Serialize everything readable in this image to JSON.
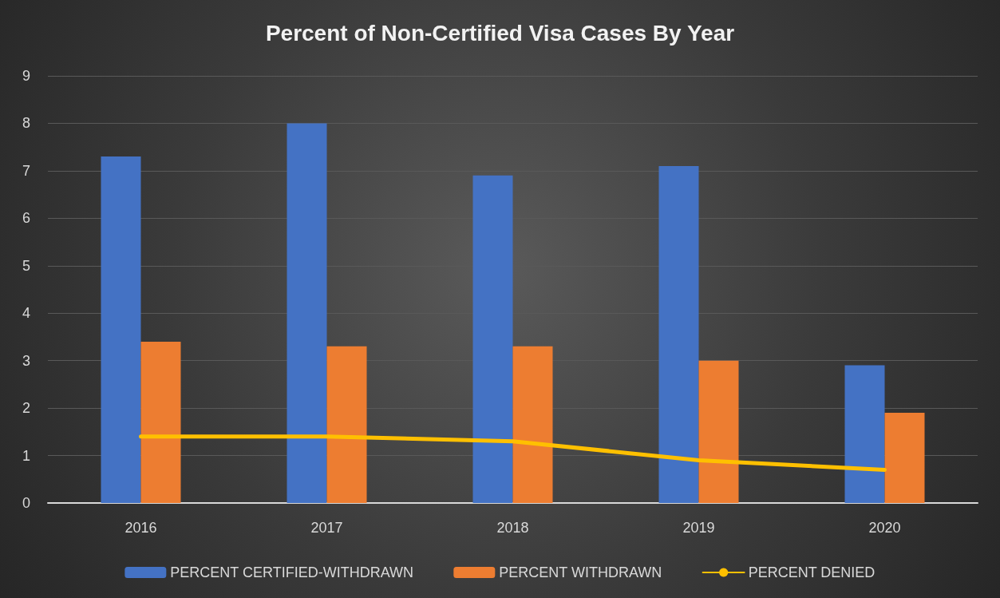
{
  "chart_data": {
    "type": "bar",
    "title": "Percent of Non-Certified Visa Cases By Year",
    "categories": [
      "2016",
      "2017",
      "2018",
      "2019",
      "2020"
    ],
    "series": [
      {
        "name": "PERCENT CERTIFIED-WITHDRAWN",
        "color": "#4472c4",
        "values": [
          7.3,
          8.0,
          6.9,
          7.1,
          2.9
        ]
      },
      {
        "name": "PERCENT WITHDRAWN",
        "color": "#ed7d31",
        "values": [
          3.4,
          3.3,
          3.3,
          3.0,
          1.9
        ]
      },
      {
        "name": "PERCENT DENIED",
        "type": "line",
        "color": "#ffc000",
        "values": [
          1.4,
          1.4,
          1.3,
          0.9,
          0.7
        ]
      }
    ],
    "ylim": [
      0,
      9
    ],
    "yticks": [
      0,
      1,
      2,
      3,
      4,
      5,
      6,
      7,
      8,
      9
    ],
    "grid": "y",
    "legend": "bottom",
    "marker": "none",
    "line_style": "solid"
  }
}
